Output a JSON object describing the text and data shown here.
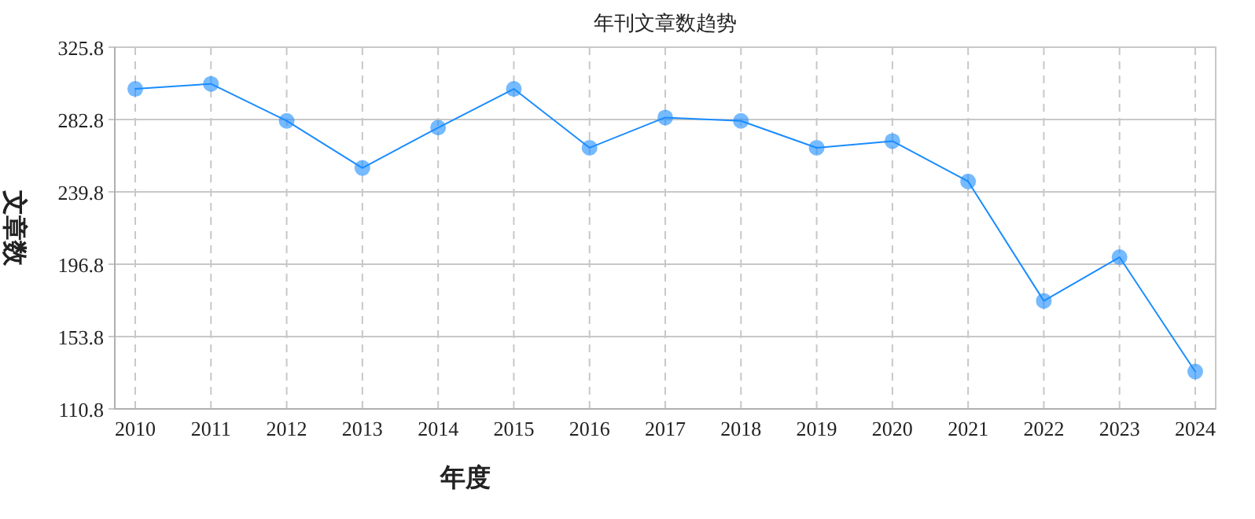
{
  "chart_data": {
    "type": "line",
    "title": "年刊文章数趋势",
    "xlabel": "年度",
    "ylabel": "文章数",
    "categories": [
      "2010",
      "2011",
      "2012",
      "2013",
      "2014",
      "2015",
      "2016",
      "2017",
      "2018",
      "2019",
      "2020",
      "2021",
      "2022",
      "2023",
      "2024"
    ],
    "series": [
      {
        "color": "#1a8cff",
        "values": [
          301,
          304,
          282,
          254,
          278,
          301,
          266,
          284,
          282,
          266,
          270,
          246,
          175,
          201,
          133
        ]
      }
    ],
    "ylim": [
      110.8,
      325.8
    ],
    "yticks": [
      110.8,
      153.8,
      196.8,
      239.8,
      282.8,
      325.8
    ],
    "grid": true,
    "marker": "circle",
    "line_style": "solid"
  }
}
